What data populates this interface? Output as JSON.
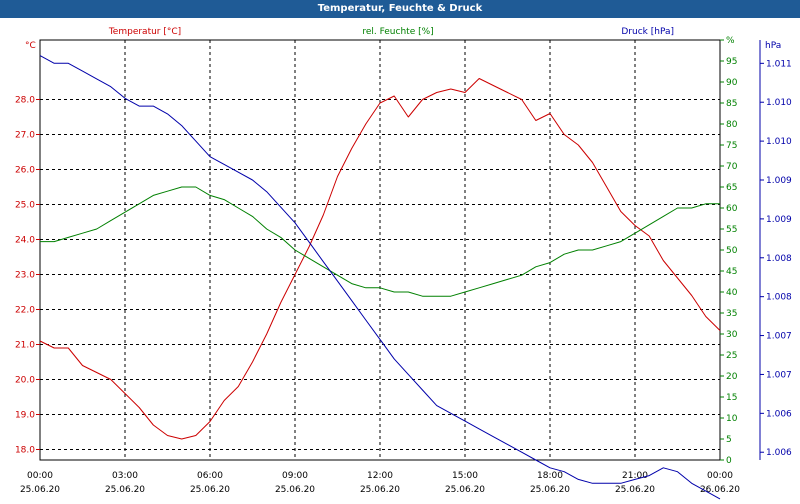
{
  "window_title": "Temperatur, Feuchte & Druck",
  "chart_data": {
    "type": "line",
    "title": "Temperatur, Feuchte & Druck",
    "x_hours": [
      0,
      0.5,
      1,
      1.5,
      2,
      2.5,
      3,
      3.5,
      4,
      4.5,
      5,
      5.5,
      6,
      6.5,
      7,
      7.5,
      8,
      8.5,
      9,
      9.5,
      10,
      10.5,
      11,
      11.5,
      12,
      12.5,
      13,
      13.5,
      14,
      14.5,
      15,
      15.5,
      16,
      16.5,
      17,
      17.5,
      18,
      18.5,
      19,
      19.5,
      20,
      20.5,
      21,
      21.5,
      22,
      22.5,
      23,
      23.5,
      24
    ],
    "x_tick_hours": [
      0,
      3,
      6,
      9,
      12,
      15,
      18,
      21,
      24
    ],
    "x_tick_labels": [
      {
        "time": "00:00",
        "date": "25.06.20"
      },
      {
        "time": "03:00",
        "date": "25.06.20"
      },
      {
        "time": "06:00",
        "date": "25.06.20"
      },
      {
        "time": "09:00",
        "date": "25.06.20"
      },
      {
        "time": "12:00",
        "date": "25.06.20"
      },
      {
        "time": "15:00",
        "date": "25.06.20"
      },
      {
        "time": "18:00",
        "date": "25.06.20"
      },
      {
        "time": "21:00",
        "date": "25.06.20"
      },
      {
        "time": "00:00",
        "date": "26.06.20"
      }
    ],
    "axes": {
      "temperature": {
        "label": "Temperatur [°C]",
        "unit": "°C",
        "range": [
          17.7,
          29.7
        ],
        "ticks": [
          18.0,
          19.0,
          20.0,
          21.0,
          22.0,
          23.0,
          24.0,
          25.0,
          26.0,
          27.0,
          28.0
        ],
        "tick_labels": [
          "18.0",
          "19.0",
          "20.0",
          "21.0",
          "22.0",
          "23.0",
          "24.0",
          "25.0",
          "26.0",
          "27.0",
          "28.0"
        ],
        "color": "#cc0000"
      },
      "humidity": {
        "label": "rel. Feuchte [%]",
        "unit": "%",
        "range": [
          0,
          100
        ],
        "ticks": [
          0,
          5,
          10,
          15,
          20,
          25,
          30,
          35,
          40,
          45,
          50,
          55,
          60,
          65,
          70,
          75,
          80,
          85,
          90,
          95,
          100
        ],
        "tick_labels": [
          "0",
          "5",
          "10",
          "15",
          "20",
          "25",
          "30",
          "35",
          "40",
          "45",
          "50",
          "55",
          "60",
          "65",
          "70",
          "75",
          "80",
          "85",
          "90",
          "95",
          "%"
        ],
        "color": "#008000"
      },
      "pressure": {
        "label": "Druck [hPa]",
        "unit": "hPa",
        "range": [
          1.0059,
          1.0113
        ],
        "ticks": [
          1.006,
          1.0065,
          1.007,
          1.0075,
          1.008,
          1.0085,
          1.009,
          1.0095,
          1.01,
          1.0105,
          1.011
        ],
        "tick_labels": [
          "1.006",
          "1.006",
          "1.007",
          "1.007",
          "1.008",
          "1.008",
          "1.009",
          "1.009",
          "1.010",
          "1.010",
          "1.011"
        ],
        "color": "#0000aa"
      }
    },
    "grid": true,
    "series": [
      {
        "name": "Temperatur [°C]",
        "axis": "temperature",
        "color": "#cc0000",
        "values": [
          21.1,
          20.9,
          20.9,
          20.4,
          20.2,
          20.0,
          19.6,
          19.2,
          18.7,
          18.4,
          18.3,
          18.4,
          18.8,
          19.4,
          19.8,
          20.5,
          21.3,
          22.2,
          23.0,
          23.8,
          24.7,
          25.8,
          26.6,
          27.3,
          27.9,
          28.1,
          27.5,
          28.0,
          28.2,
          28.3,
          28.2,
          28.6,
          28.4,
          28.2,
          28.0,
          27.4,
          27.6,
          27.0,
          26.7,
          26.2,
          25.5,
          24.8,
          24.4,
          24.1,
          23.4,
          22.9,
          22.4,
          21.8,
          21.4
        ]
      },
      {
        "name": "rel. Feuchte [%]",
        "axis": "humidity",
        "color": "#008000",
        "values": [
          52,
          52,
          53,
          54,
          55,
          57,
          59,
          61,
          63,
          64,
          65,
          65,
          63,
          62,
          60,
          58,
          55,
          53,
          50,
          48,
          46,
          44,
          42,
          41,
          41,
          40,
          40,
          39,
          39,
          39,
          40,
          41,
          42,
          43,
          44,
          46,
          47,
          49,
          50,
          50,
          51,
          52,
          54,
          56,
          58,
          60,
          60,
          61,
          61
        ]
      },
      {
        "name": "Druck [hPa]",
        "axis": "pressure",
        "color": "#0000aa",
        "values": [
          1.0111,
          1.011,
          1.011,
          1.0109,
          1.0108,
          1.0107,
          1.01055,
          1.01045,
          1.01045,
          1.01035,
          1.0102,
          1.01,
          1.0098,
          1.0097,
          1.0096,
          1.0095,
          1.00935,
          1.00915,
          1.00895,
          1.0087,
          1.00845,
          1.0082,
          1.00795,
          1.0077,
          1.00745,
          1.0072,
          1.007,
          1.0068,
          1.0066,
          1.0065,
          1.0064,
          1.0063,
          1.0062,
          1.0061,
          1.006,
          1.0059,
          1.0058,
          1.00575,
          1.00565,
          1.0056,
          1.0056,
          1.0056,
          1.00565,
          1.0057,
          1.0058,
          1.00575,
          1.0056,
          1.0055,
          1.0054
        ]
      }
    ]
  }
}
